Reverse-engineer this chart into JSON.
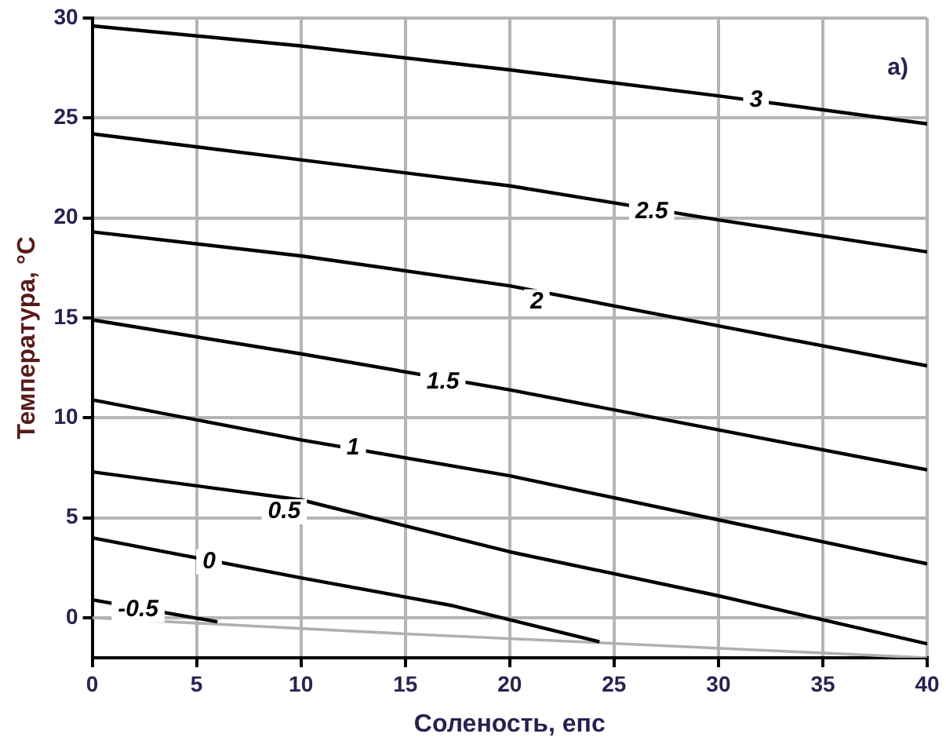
{
  "chart_data": {
    "type": "line",
    "xlabel": "Соленость, епс",
    "ylabel": "Температура, °С",
    "xlim": [
      0,
      40
    ],
    "xticks": [
      0,
      5,
      10,
      15,
      20,
      25,
      30,
      35,
      40
    ],
    "ylim": [
      -2,
      30
    ],
    "yticks": [
      0,
      5,
      10,
      15,
      20,
      25,
      30
    ],
    "grid": true,
    "legend": false,
    "marker": "none",
    "line_style": "solid",
    "series": [
      {
        "color": "#000000",
        "x": [
          0,
          10,
          20,
          30,
          40
        ],
        "values": [
          29.6,
          28.6,
          27.4,
          26.1,
          24.7
        ]
      },
      {
        "color": "#000000",
        "x": [
          0,
          10,
          20,
          30,
          40
        ],
        "values": [
          24.2,
          22.9,
          21.6,
          19.9,
          18.3
        ]
      },
      {
        "color": "#000000",
        "x": [
          0,
          10,
          20,
          30,
          40
        ],
        "values": [
          19.3,
          18.1,
          16.6,
          14.6,
          12.6
        ]
      },
      {
        "color": "#000000",
        "x": [
          0,
          10,
          20,
          30,
          40
        ],
        "values": [
          14.9,
          13.2,
          11.4,
          9.4,
          7.4
        ]
      },
      {
        "color": "#000000",
        "x": [
          0,
          10,
          20,
          30,
          40
        ],
        "values": [
          10.9,
          8.9,
          7.1,
          4.9,
          2.7
        ]
      },
      {
        "color": "#000000",
        "x": [
          0,
          10,
          20,
          30,
          40
        ],
        "values": [
          7.3,
          5.9,
          3.3,
          1.1,
          -1.3
        ]
      },
      {
        "color": "#000000",
        "x": [
          0,
          10,
          17.3,
          24.3
        ],
        "values": [
          4.0,
          2.0,
          0.6,
          -1.2
        ]
      },
      {
        "color": "#000000",
        "x": [
          0,
          6
        ],
        "values": [
          0.9,
          -0.2
        ]
      },
      {
        "color": "#b0b0b0",
        "x": [
          0,
          15,
          40
        ],
        "values": [
          0,
          -0.8,
          -2.0
        ]
      }
    ],
    "annotations": [
      {
        "text": "3",
        "x": 31.8,
        "y": 25.9
      },
      {
        "text": "2.5",
        "x": 26.8,
        "y": 20.3
      },
      {
        "text": "2",
        "x": 21.3,
        "y": 15.8
      },
      {
        "text": "1.5",
        "x": 16.8,
        "y": 11.8
      },
      {
        "text": "1",
        "x": 12.5,
        "y": 8.5
      },
      {
        "text": "0.5",
        "x": 9.2,
        "y": 5.3
      },
      {
        "text": "0",
        "x": 5.6,
        "y": 2.8
      },
      {
        "text": "-0.5",
        "x": 2.2,
        "y": 0.4
      },
      "а)"
    ]
  }
}
